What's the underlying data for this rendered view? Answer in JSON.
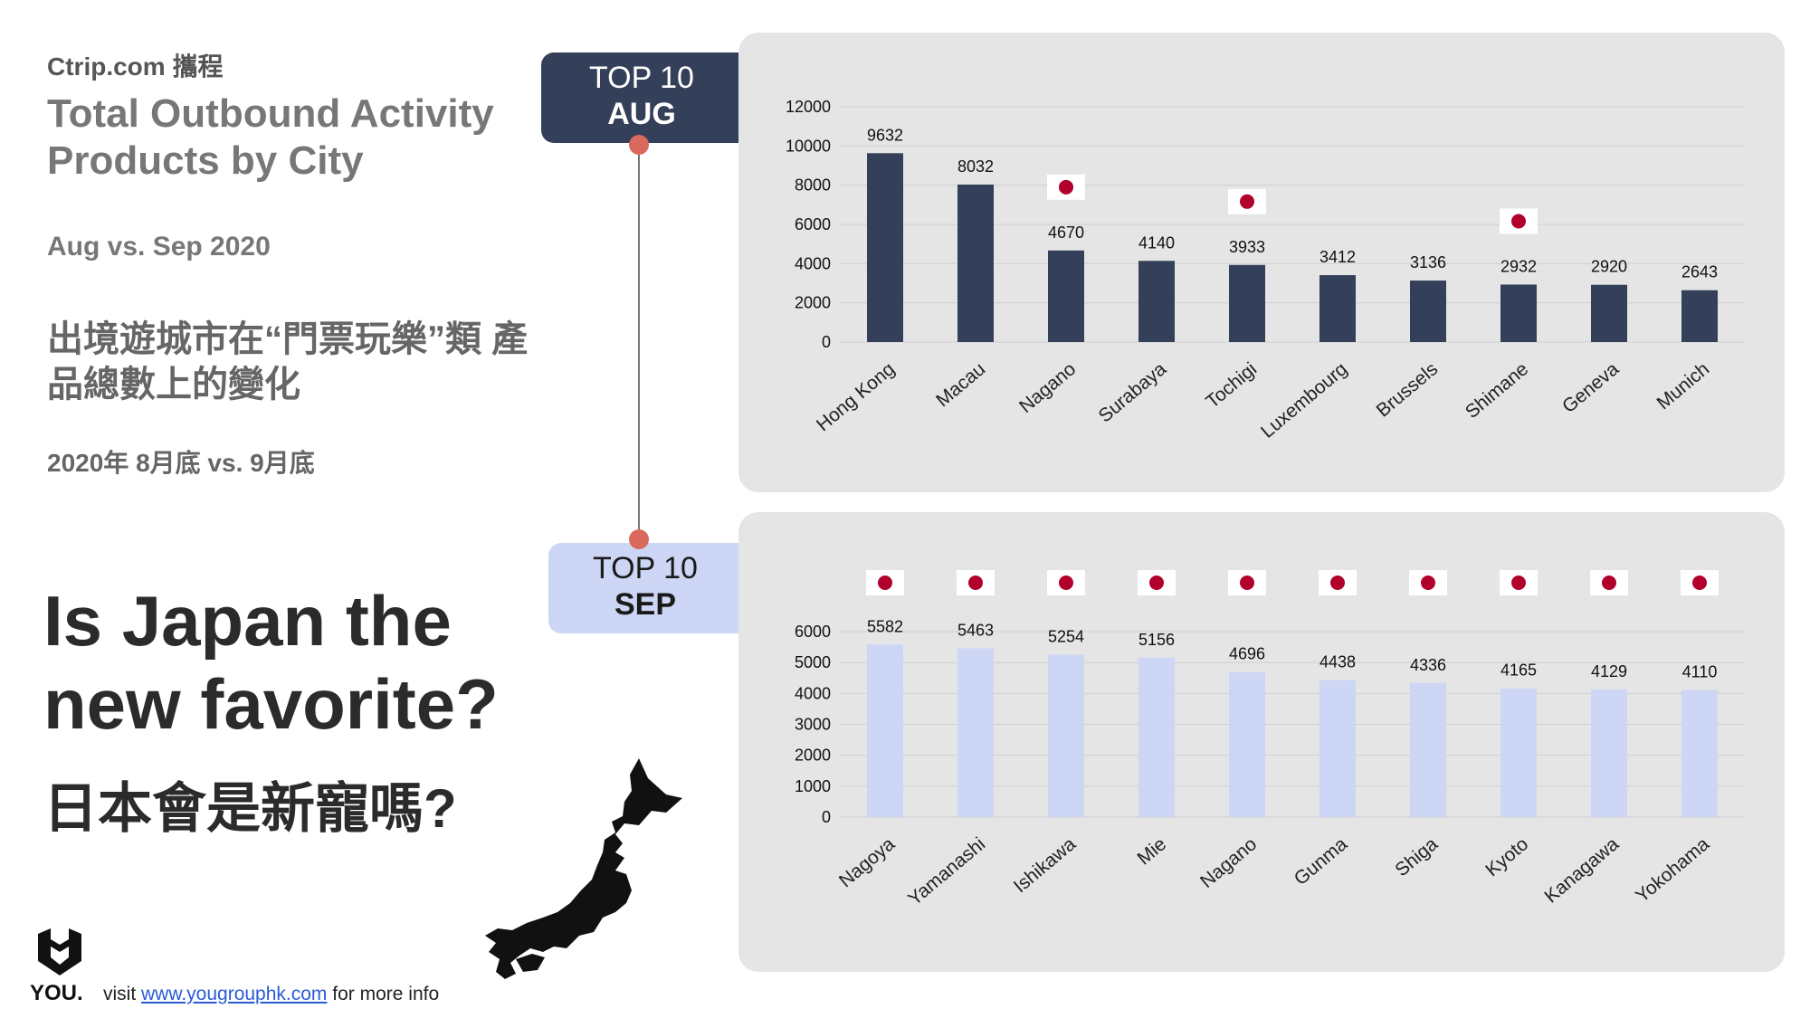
{
  "header": {
    "source": "Ctrip.com 攜程",
    "title": "Total Outbound Activity Products by City",
    "subtitle": "Aug vs. Sep 2020",
    "zh_desc": "出境遊城市在“門票玩樂”類 產品總數上的變化",
    "zh_date": "2020年 8月底 vs. 9月底"
  },
  "question": {
    "en": "Is Japan the new favorite?",
    "zh": "日本會是新寵嗎?"
  },
  "tags": {
    "aug": {
      "line1": "TOP 10",
      "line2": "AUG"
    },
    "sep": {
      "line1": "TOP 10",
      "line2": "SEP"
    }
  },
  "footer": {
    "logo_text": "YOU.",
    "prefix": "visit ",
    "link": "www.yougrouphk.com",
    "suffix": " for more info"
  },
  "colors": {
    "aug_bar": "#34405a",
    "sep_bar": "#cdd6f4",
    "panel_bg": "#e5e5e5",
    "connector_dot": "#d9695c",
    "japan_flag_red": "#b0002b"
  },
  "chart_data": [
    {
      "type": "bar",
      "categories": [
        "Hong Kong",
        "Macau",
        "Nagano",
        "Surabaya",
        "Tochigi",
        "Luxembourg",
        "Brussels",
        "Shimane",
        "Geneva",
        "Munich"
      ],
      "values": [
        9632,
        8032,
        4670,
        4140,
        3933,
        3412,
        3136,
        2932,
        2920,
        2643
      ],
      "japan_flag": [
        false,
        false,
        true,
        false,
        true,
        false,
        false,
        true,
        false,
        false
      ],
      "yticks": [
        0,
        2000,
        4000,
        6000,
        8000,
        10000,
        12000
      ],
      "ylim": [
        0,
        12000
      ],
      "grid": true,
      "color": "#34405a"
    },
    {
      "type": "bar",
      "categories": [
        "Nagoya",
        "Yamanashi",
        "Ishikawa",
        "Mie",
        "Nagano",
        "Gunma",
        "Shiga",
        "Kyoto",
        "Kanagawa",
        "Yokohama"
      ],
      "values": [
        5582,
        5463,
        5254,
        5156,
        4696,
        4438,
        4336,
        4165,
        4129,
        4110
      ],
      "japan_flag": [
        true,
        true,
        true,
        true,
        true,
        true,
        true,
        true,
        true,
        true
      ],
      "yticks": [
        0,
        1000,
        2000,
        3000,
        4000,
        5000,
        6000
      ],
      "ylim": [
        0,
        6000
      ],
      "grid": true,
      "color": "#cdd6f4"
    }
  ]
}
